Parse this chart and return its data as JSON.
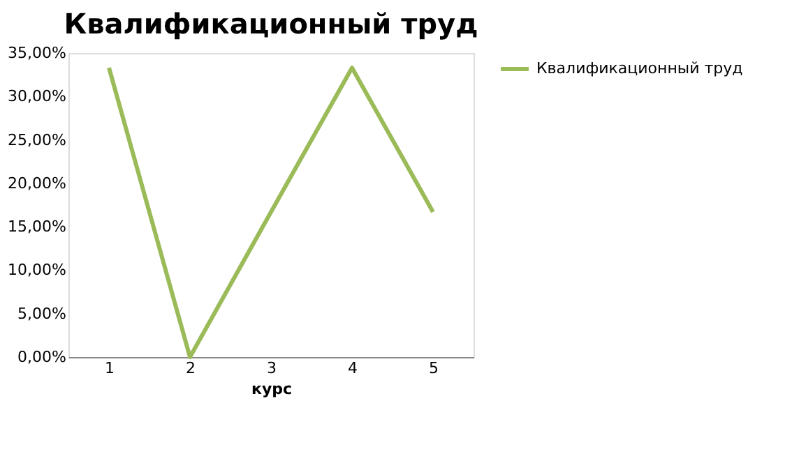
{
  "chart_data": {
    "type": "line",
    "title": "Квалификационный труд",
    "xlabel": "курс",
    "categories": [
      "1",
      "2",
      "3",
      "4",
      "5"
    ],
    "series": [
      {
        "name": "Квалификационный труд",
        "color": "#9bbb59",
        "values": [
          33.3,
          0,
          16.7,
          33.3,
          16.7
        ]
      }
    ],
    "ylim": [
      0,
      35
    ],
    "yticks": [
      {
        "value": 0,
        "label": "0,00%"
      },
      {
        "value": 5,
        "label": "5,00%"
      },
      {
        "value": 10,
        "label": "10,00%"
      },
      {
        "value": 15,
        "label": "15,00%"
      },
      {
        "value": 20,
        "label": "20,00%"
      },
      {
        "value": 25,
        "label": "25,00%"
      },
      {
        "value": 30,
        "label": "30,00%"
      },
      {
        "value": 35,
        "label": "35,00%"
      }
    ],
    "grid": false,
    "legend": "right",
    "marker": "none",
    "line_style": "solid"
  }
}
